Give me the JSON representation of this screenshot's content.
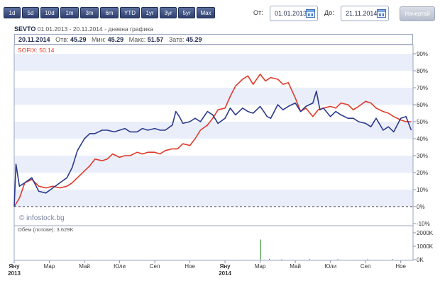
{
  "range_buttons": [
    "1d",
    "5d",
    "10d",
    "1m",
    "3m",
    "6m",
    "YTD",
    "1yr",
    "3yr",
    "5yr",
    "Max"
  ],
  "from_label": "От:",
  "from_value": "01.01.2013",
  "to_label": "До:",
  "to_value": "21.11.2014",
  "draw_button": "Начертай",
  "header": {
    "symbol": "SEVTO",
    "period": "01.01.2013 - 20.11.2014 - дневна графика"
  },
  "stats": {
    "date": "20.11.2014",
    "open_label": "Отв:",
    "open": "45.29",
    "min_label": "Мин:",
    "min": "45.29",
    "max_label": "Макс:",
    "max": "51.57",
    "close_label": "Затв:",
    "close": "45.29"
  },
  "sofix_label": "SOFIX: 50.14",
  "watermark": "© infostock.bg",
  "volume_label": "Обем (лотове): 3.629K",
  "colors": {
    "sevto": "#2b3a8c",
    "sofix": "#e03a2a",
    "band": "#e9eefa",
    "axis": "#8a96b5"
  },
  "chart_data": [
    {
      "type": "line",
      "x_ticks": [
        "Яну\n2013",
        "Мар",
        "Май",
        "Юли",
        "Сеп",
        "Ное",
        "Яну\n2014",
        "Мар",
        "Май",
        "Юли",
        "Сеп",
        "Ное"
      ],
      "y_ticks": [
        "90%",
        "80%",
        "70%",
        "60%",
        "50%",
        "40%",
        "30%",
        "20%",
        "10%",
        "0%",
        "-10%"
      ],
      "ylim": [
        -10,
        90
      ],
      "xlim_months": [
        0,
        22.7
      ],
      "series": [
        {
          "name": "SEVTO",
          "x": [
            0,
            0.1,
            0.3,
            0.6,
            1,
            1.4,
            1.8,
            2.2,
            2.6,
            3,
            3.3,
            3.6,
            4,
            4.3,
            4.6,
            5,
            5.3,
            5.7,
            6,
            6.3,
            6.6,
            7,
            7.3,
            7.6,
            8,
            8.3,
            8.6,
            9,
            9.2,
            9.4,
            9.6,
            10,
            10.3,
            10.6,
            11,
            11.3,
            11.6,
            12,
            12.3,
            12.6,
            13,
            13.3,
            13.6,
            14,
            14.2,
            14.4,
            14.6,
            15,
            15.3,
            15.6,
            16,
            16.3,
            16.6,
            17,
            17.2,
            17.4,
            17.6,
            18,
            18.3,
            18.6,
            19,
            19.3,
            19.6,
            20,
            20.3,
            20.6,
            21,
            21.3,
            21.6,
            22,
            22.3,
            22.6
          ],
          "y": [
            0,
            25,
            12,
            14,
            17,
            9,
            8,
            11,
            14,
            17,
            23,
            33,
            40,
            43,
            43,
            45,
            45,
            44,
            45,
            46,
            44,
            44,
            46,
            45,
            46,
            45,
            45,
            48,
            56,
            53,
            49,
            50,
            52,
            50,
            56,
            54,
            49,
            52,
            58,
            54,
            58,
            56,
            55,
            59,
            56,
            53,
            52,
            60,
            57,
            59,
            61,
            56,
            59,
            61,
            68,
            57,
            58,
            53,
            56,
            54,
            52,
            52,
            50,
            49,
            47,
            52,
            45,
            47,
            44,
            52,
            53,
            45
          ]
        },
        {
          "name": "SOFIX",
          "x": [
            0,
            0.3,
            0.6,
            1,
            1.4,
            1.8,
            2.2,
            2.6,
            3,
            3.3,
            3.6,
            4,
            4.3,
            4.6,
            5,
            5.3,
            5.6,
            6,
            6.3,
            6.6,
            7,
            7.3,
            7.6,
            8,
            8.3,
            8.6,
            9,
            9.3,
            9.6,
            10,
            10.3,
            10.6,
            11,
            11.3,
            11.6,
            12,
            12.3,
            12.6,
            13,
            13.3,
            13.6,
            14,
            14.3,
            14.6,
            15,
            15.3,
            15.6,
            16,
            16.3,
            16.6,
            17,
            17.3,
            17.6,
            18,
            18.3,
            18.6,
            19,
            19.3,
            19.6,
            20,
            20.3,
            20.6,
            21,
            21.3,
            21.6,
            22,
            22.3,
            22.6
          ],
          "y": [
            0,
            5,
            14,
            16,
            12,
            11,
            12,
            11,
            12,
            14,
            17,
            21,
            24,
            28,
            27,
            28,
            31,
            29,
            30,
            30,
            32,
            31,
            32,
            32,
            31,
            33,
            34,
            34,
            37,
            36,
            40,
            45,
            48,
            52,
            57,
            58,
            65,
            71,
            75,
            77,
            72,
            78,
            74,
            76,
            75,
            72,
            73,
            64,
            56,
            58,
            53,
            57,
            58,
            59,
            58,
            61,
            60,
            57,
            59,
            62,
            61,
            58,
            56,
            55,
            53,
            51,
            50,
            50
          ]
        }
      ],
      "legend": "top-left"
    },
    {
      "type": "bar",
      "title": "Обем (лотове): 3.629K",
      "y_ticks": [
        "2000K",
        "1000K",
        "0K"
      ],
      "ylim": [
        0,
        2000
      ],
      "x": [
        14.0,
        14.5,
        15.2,
        16.8,
        18.4,
        20.1,
        21.5
      ],
      "values": [
        1500,
        60,
        40,
        50,
        45,
        55,
        50
      ]
    }
  ]
}
